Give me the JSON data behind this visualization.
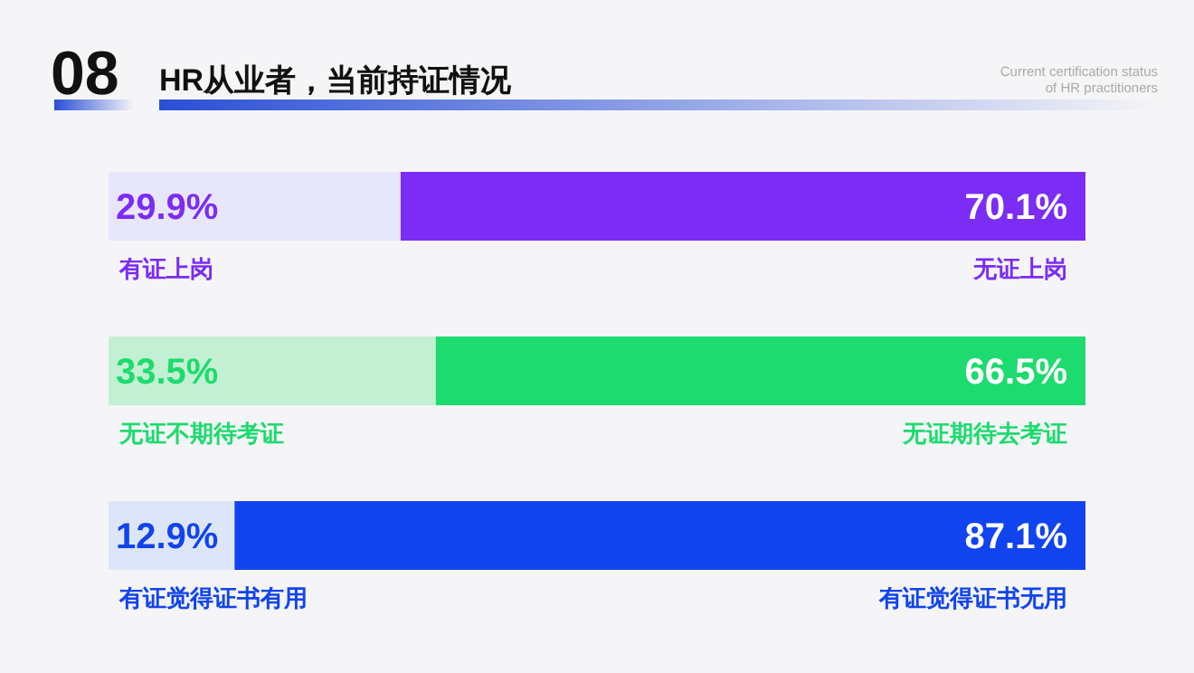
{
  "chart_data": [
    {
      "type": "bar",
      "orientation": "horizontal",
      "stacked": true,
      "title": "HR从业者，当前持证情况",
      "subtitle": "Current certification status of HR practitioners",
      "annotations": [
        "08"
      ],
      "categories": [
        null
      ],
      "xlim": [
        0,
        100
      ],
      "tick_labels": false,
      "series": [
        {
          "name": "有证上岗",
          "color": "#e8e6fb",
          "values": [
            29.9
          ],
          "value_labels": [
            "29.9%"
          ]
        },
        {
          "name": "无证上岗",
          "color": "#7b2cf5",
          "values": [
            70.1
          ],
          "value_labels": [
            "70.1%"
          ]
        }
      ]
    },
    {
      "type": "bar",
      "orientation": "horizontal",
      "stacked": true,
      "categories": [
        null
      ],
      "xlim": [
        0,
        100
      ],
      "tick_labels": false,
      "series": [
        {
          "name": "无证不期待考证",
          "color": "#c3f0d3",
          "values": [
            33.5
          ],
          "value_labels": [
            "33.5%"
          ]
        },
        {
          "name": "无证期待去考证",
          "color": "#1ddb6e",
          "values": [
            66.5
          ],
          "value_labels": [
            "66.5%"
          ]
        }
      ]
    },
    {
      "type": "bar",
      "orientation": "horizontal",
      "stacked": true,
      "categories": [
        null
      ],
      "xlim": [
        0,
        100
      ],
      "tick_labels": false,
      "series": [
        {
          "name": "有证觉得证书有用",
          "color": "#dde5f8",
          "values": [
            12.9
          ],
          "value_labels": [
            "12.9%"
          ]
        },
        {
          "name": "有证觉得证书无用",
          "color": "#1144ee",
          "values": [
            87.1
          ],
          "value_labels": [
            "87.1%"
          ]
        }
      ]
    }
  ]
}
